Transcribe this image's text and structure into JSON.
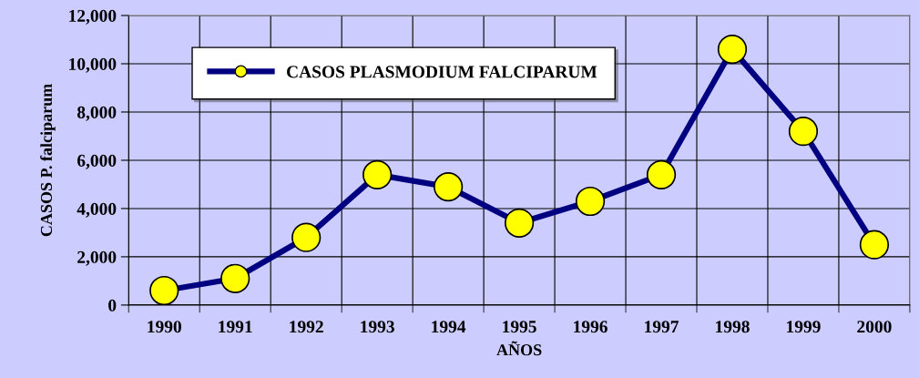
{
  "chart_data": {
    "type": "line",
    "xlabel": "AÑOS",
    "ylabel": "CASOS P. falciparum",
    "categories": [
      "1990",
      "1991",
      "1992",
      "1993",
      "1994",
      "1995",
      "1996",
      "1997",
      "1998",
      "1999",
      "2000"
    ],
    "series": [
      {
        "name": "CASOS PLASMODIUM FALCIPARUM",
        "color": "#000080",
        "values": [
          600,
          1100,
          2800,
          5400,
          4900,
          3400,
          4300,
          5400,
          10600,
          7200,
          2500
        ]
      }
    ],
    "ylim": [
      0,
      12000
    ],
    "yticks": [
      {
        "value": 0,
        "label": "0"
      },
      {
        "value": 2000,
        "label": "2,000"
      },
      {
        "value": 4000,
        "label": "4,000"
      },
      {
        "value": 6000,
        "label": "6,000"
      },
      {
        "value": 8000,
        "label": "8,000"
      },
      {
        "value": 10000,
        "label": "10,000"
      },
      {
        "value": 12000,
        "label": "12,000"
      }
    ],
    "grid": true,
    "legend": "top left",
    "marker": "circle",
    "line_style": "solid"
  }
}
